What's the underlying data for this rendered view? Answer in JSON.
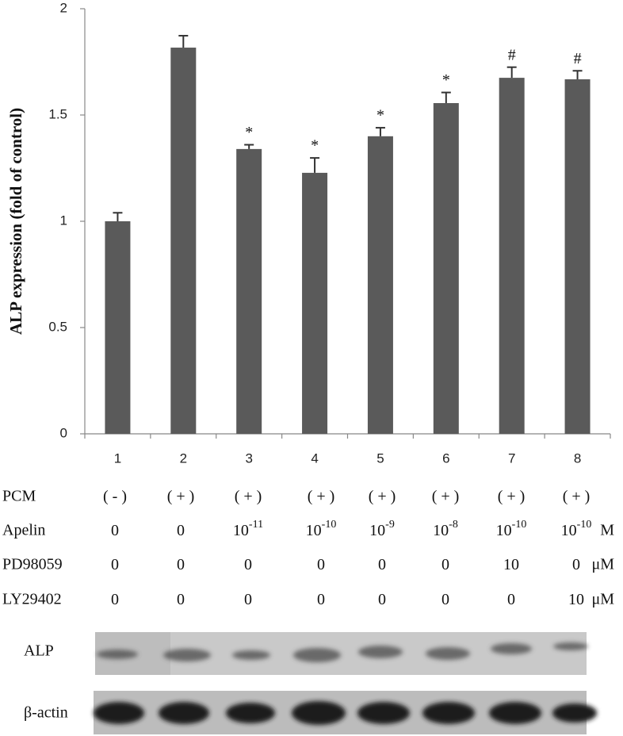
{
  "chart_data": {
    "type": "bar",
    "ylabel": "ALP expression (fold of control)",
    "categories": [
      "1",
      "2",
      "3",
      "4",
      "5",
      "6",
      "7",
      "8"
    ],
    "values": [
      1.0,
      1.817,
      1.34,
      1.228,
      1.4,
      1.556,
      1.675,
      1.668
    ],
    "errors": [
      0.04,
      0.056,
      0.02,
      0.07,
      0.04,
      0.05,
      0.05,
      0.04
    ],
    "annotations": [
      null,
      null,
      "*",
      "*",
      "*",
      "*",
      "#",
      "#"
    ],
    "color": "#5a5a5a",
    "ylim": [
      0,
      2
    ],
    "yticks": [
      0,
      0.5,
      1,
      1.5,
      2
    ],
    "grid": false
  },
  "table": {
    "rows": [
      {
        "label": "PCM",
        "cells": [
          {
            "text": "( - )"
          },
          {
            "text": "( + )"
          },
          {
            "text": "( + )"
          },
          {
            "text": "( + )"
          },
          {
            "text": "( + )"
          },
          {
            "text": "( + )"
          },
          {
            "text": "( + )"
          },
          {
            "text": "( + )"
          }
        ]
      },
      {
        "label": "Apelin",
        "unit": "M",
        "cells": [
          {
            "text": "0"
          },
          {
            "text": "0"
          },
          {
            "text": "10",
            "sup": "-11"
          },
          {
            "text": "10",
            "sup": "-10"
          },
          {
            "text": "10",
            "sup": "-9"
          },
          {
            "text": "10",
            "sup": "-8"
          },
          {
            "text": "10",
            "sup": "-10"
          },
          {
            "text": "10",
            "sup": "-10"
          }
        ]
      },
      {
        "label": "PD98059",
        "unit": "μM",
        "cells": [
          {
            "text": "0"
          },
          {
            "text": "0"
          },
          {
            "text": "0"
          },
          {
            "text": "0"
          },
          {
            "text": "0"
          },
          {
            "text": "0"
          },
          {
            "text": "10"
          },
          {
            "text": "0"
          }
        ]
      },
      {
        "label": "LY29402",
        "unit": "μM",
        "cells": [
          {
            "text": "0"
          },
          {
            "text": "0"
          },
          {
            "text": "0"
          },
          {
            "text": "0"
          },
          {
            "text": "0"
          },
          {
            "text": "0"
          },
          {
            "text": "0"
          },
          {
            "text": "10"
          }
        ]
      }
    ]
  },
  "blots": [
    {
      "label": "ALP"
    },
    {
      "label": "β-actin"
    }
  ]
}
